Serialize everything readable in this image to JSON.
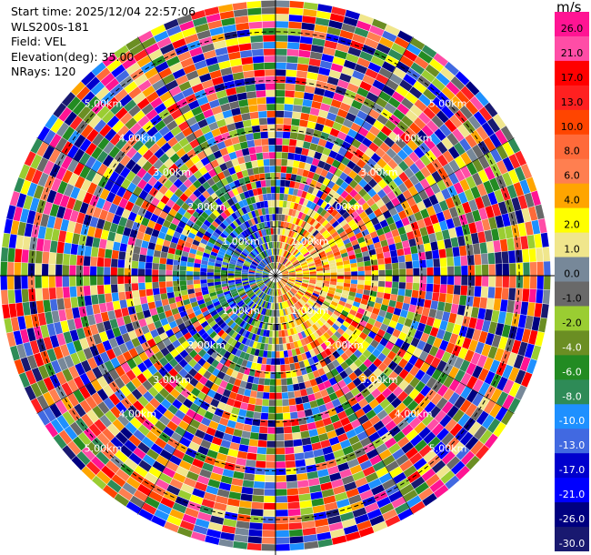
{
  "info": {
    "start_time": "Start time: 2025/12/04 22:57:06",
    "instrument": "WLS200s-181",
    "field": "Field: VEL",
    "elevation": "Elevation(deg): 35.00",
    "nrays": "NRays: 120"
  },
  "chart_data": {
    "type": "heatmap",
    "projection": "polar-ppi",
    "field": "VEL",
    "units": "m/s",
    "nrays": 120,
    "elevation_deg": 35.0,
    "range_rings_km": [
      1,
      2,
      3,
      4,
      5
    ],
    "range_ring_labels": [
      "1.00km",
      "2.00km",
      "3.00km",
      "4.00km",
      "5.00km"
    ],
    "max_range_km": 5.65,
    "colorbar": {
      "unit": "m/s",
      "ticks": [
        "26.0",
        "21.0",
        "17.0",
        "13.0",
        "10.0",
        "8.0",
        "6.0",
        "4.0",
        "2.0",
        "1.0",
        "0.0",
        "-1.0",
        "-2.0",
        "-4.0",
        "-6.0",
        "-8.0",
        "-10.0",
        "-13.0",
        "-17.0",
        "-21.0",
        "-26.0",
        "-30.0"
      ],
      "colors": [
        "#ff1493",
        "#ff4da6",
        "#ff0000",
        "#ff2020",
        "#ff4500",
        "#ff6a3a",
        "#ff7f50",
        "#ffa500",
        "#ffff00",
        "#f0e68c",
        "#778899",
        "#696969",
        "#9acd32",
        "#6b8e23",
        "#228b22",
        "#2e8b57",
        "#1e90ff",
        "#4169e1",
        "#0000cd",
        "#0000ff",
        "#000080",
        "#191970"
      ]
    },
    "near_field_pattern": "positive (yellow/orange) to the east, negative (blue/green) to the west within ~1.5 km",
    "grid": true
  }
}
